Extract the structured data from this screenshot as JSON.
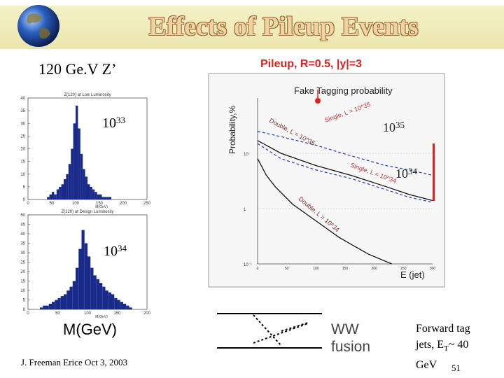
{
  "slide": {
    "title": "Effects of Pileup Events",
    "subtitle": "120 Ge.V Z’",
    "footer": "J. Freeman Erice Oct 3, 2003",
    "page_number": "51",
    "colors": {
      "title_fill": "#f0d3a0",
      "title_band": "#f4f1c6",
      "plot_title": "#e02020",
      "hist_bar": "#1a2a8a"
    }
  },
  "labels": {
    "lum_1033": {
      "base": "10",
      "exp": "33"
    },
    "lum_1034": {
      "base": "10",
      "exp": "34"
    },
    "lum_1035_plot": {
      "base": "10",
      "exp": "35"
    },
    "lum_1034_plot": {
      "base": "10",
      "exp": "34"
    },
    "mass_axis": "M(GeV)",
    "ww_fusion": [
      "WW",
      "fusion"
    ],
    "forward_tag": {
      "line1": "Forward tag",
      "line2_pre": "jets, E",
      "line2_sub": "T",
      "line2_post": "~ 40",
      "line3": "GeV"
    }
  },
  "chart_data": [
    {
      "type": "bar",
      "title": "Z(120) at Low Luminosity",
      "xlabel": "M(GeV)",
      "ylabel": "",
      "xlim": [
        0,
        250
      ],
      "ylim": [
        0,
        40
      ],
      "x_ticks": [
        0,
        50,
        100,
        150,
        200,
        250
      ],
      "y_ticks": [
        0,
        5,
        10,
        15,
        20,
        25,
        30,
        35,
        40
      ],
      "bin_width": 5,
      "x": [
        40,
        45,
        50,
        55,
        60,
        65,
        70,
        75,
        80,
        85,
        90,
        95,
        100,
        105,
        110,
        115,
        120,
        125,
        130,
        135,
        140,
        145,
        150,
        155,
        160,
        165,
        170
      ],
      "values": [
        1,
        2,
        3,
        2,
        4,
        5,
        6,
        8,
        10,
        14,
        20,
        30,
        37,
        28,
        18,
        12,
        9,
        6,
        5,
        4,
        3,
        2,
        2,
        1,
        1,
        1,
        1
      ]
    },
    {
      "type": "bar",
      "title": "Z(120) at Design Luminosity",
      "xlabel": "M(GeV)",
      "ylabel": "",
      "xlim": [
        0,
        200
      ],
      "ylim": [
        0,
        50
      ],
      "x_ticks": [
        0,
        50,
        100,
        150,
        200
      ],
      "y_ticks": [
        0,
        5,
        10,
        15,
        20,
        25,
        30,
        35,
        40,
        45,
        50
      ],
      "bin_width": 5,
      "x": [
        20,
        25,
        30,
        35,
        40,
        45,
        50,
        55,
        60,
        65,
        70,
        75,
        80,
        85,
        90,
        95,
        100,
        105,
        110,
        115,
        120,
        125,
        130,
        135,
        140,
        145,
        150,
        155,
        160,
        165,
        170
      ],
      "values": [
        1,
        2,
        2,
        3,
        4,
        5,
        6,
        7,
        8,
        10,
        12,
        15,
        22,
        32,
        42,
        35,
        28,
        22,
        18,
        16,
        14,
        12,
        10,
        9,
        8,
        6,
        5,
        4,
        3,
        2,
        1
      ]
    },
    {
      "type": "line",
      "title": "Pileup, R=0.5, |y|=3",
      "subtitle": "Fake Tagging probability",
      "xlabel": "E (jet)",
      "ylabel": "Probability,%",
      "y_scale": "log",
      "xlim": [
        0,
        300
      ],
      "ylim": [
        0.1,
        100
      ],
      "x_ticks": [
        0,
        50,
        100,
        150,
        200,
        250,
        300
      ],
      "y_tick_labels": [
        "10",
        "1",
        "10⁻¹"
      ],
      "series": [
        {
          "name": "Single, L = 10^35",
          "style": "dashed",
          "x": [
            0,
            40,
            100,
            160,
            220,
            260,
            300
          ],
          "y": [
            25,
            20,
            14,
            9,
            6,
            5,
            4
          ]
        },
        {
          "name": "Double, L = 10^35",
          "style": "solid",
          "x": [
            0,
            40,
            100,
            160,
            220,
            260,
            300
          ],
          "y": [
            17,
            10,
            6,
            4,
            2.5,
            1.8,
            1.4
          ]
        },
        {
          "name": "Single, L = 10^34",
          "style": "dashed",
          "x": [
            0,
            40,
            100,
            160,
            220,
            260,
            300
          ],
          "y": [
            15,
            8,
            5,
            3.5,
            2.2,
            1.6,
            1.3
          ]
        },
        {
          "name": "Double, L = 10^34",
          "style": "solid",
          "x": [
            0,
            15,
            30,
            60,
            100,
            140,
            190,
            230
          ],
          "y": [
            8,
            4,
            2.5,
            1.2,
            0.6,
            0.3,
            0.15,
            0.1
          ]
        }
      ]
    }
  ]
}
